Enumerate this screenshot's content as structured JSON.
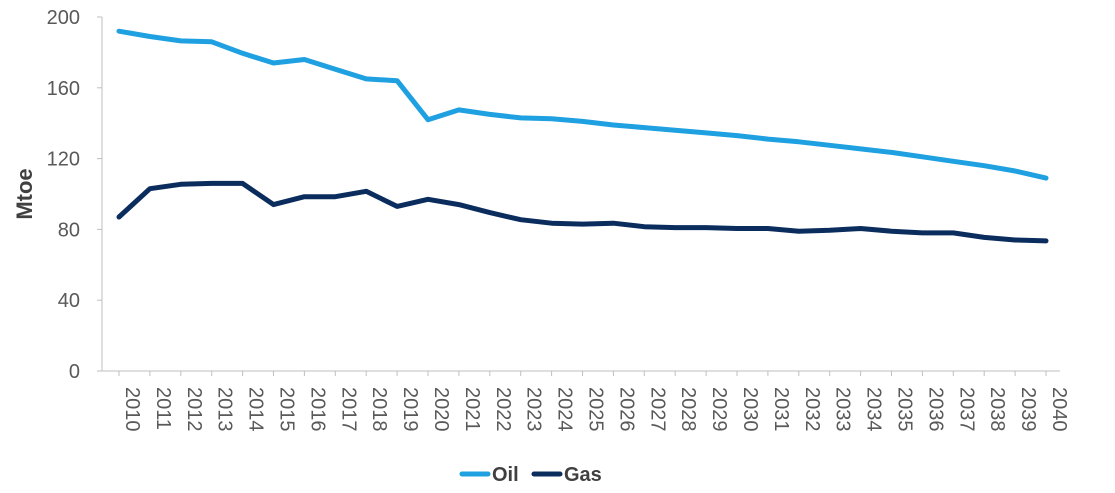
{
  "chart_data": {
    "type": "line",
    "title": "",
    "xlabel": "",
    "ylabel": "Mtoe",
    "ylim": [
      0,
      200
    ],
    "yticks": [
      0,
      40,
      80,
      120,
      160,
      200
    ],
    "grid": false,
    "legend_position": "bottom",
    "categories": [
      "2010",
      "2011",
      "2012",
      "2013",
      "2014",
      "2015",
      "2016",
      "2017",
      "2018",
      "2019",
      "2020",
      "2021",
      "2022",
      "2023",
      "2024",
      "2025",
      "2026",
      "2027",
      "2028",
      "2029",
      "2030",
      "2031",
      "2032",
      "2033",
      "2034",
      "2035",
      "2036",
      "2037",
      "2038",
      "2039",
      "2040"
    ],
    "series": [
      {
        "name": "Oil",
        "color": "#1fa0e0",
        "values": [
          192,
          189,
          186.5,
          186,
          179.5,
          174,
          176,
          170.5,
          165,
          164,
          142,
          147.5,
          145,
          143,
          142.5,
          141,
          139,
          137.5,
          136,
          134.5,
          133,
          131,
          129.5,
          127.5,
          125.5,
          123.5,
          121,
          118.5,
          116,
          113,
          109
        ]
      },
      {
        "name": "Gas",
        "color": "#0b2d5e",
        "values": [
          87,
          103,
          105.5,
          106,
          106,
          94,
          98.5,
          98.5,
          101.5,
          93,
          97,
          94,
          89.5,
          85.5,
          83.5,
          83,
          83.5,
          81.5,
          81,
          81,
          80.5,
          80.5,
          79,
          79.5,
          80.5,
          79,
          78,
          78,
          75.5,
          74,
          73.5
        ]
      }
    ]
  }
}
